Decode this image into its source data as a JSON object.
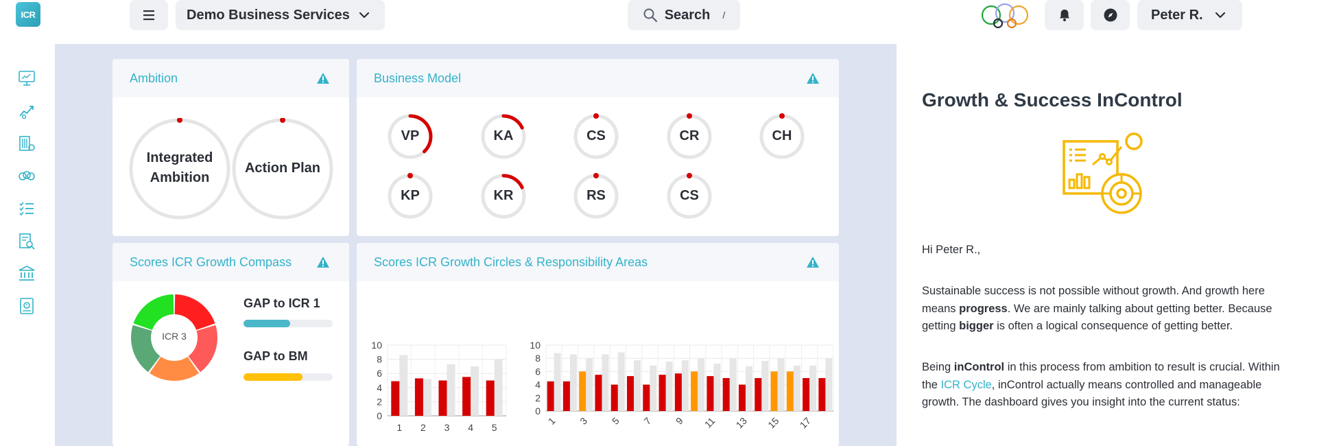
{
  "header": {
    "logo_text": "ICR",
    "business_name": "Demo Business Services",
    "search_label": "Search",
    "search_shortcut": "/",
    "user_name": "Peter R."
  },
  "sidebar": {
    "icons": [
      "dashboard-icon",
      "growth-icon",
      "building-icon",
      "circles-icon",
      "checklist-icon",
      "report-search-icon",
      "bank-icon",
      "book-icon"
    ]
  },
  "ambition": {
    "title": "Ambition",
    "rings": [
      {
        "line1": "Integrated",
        "line2": "Ambition",
        "progress": 0
      },
      {
        "label": "Action Plan",
        "progress": 0
      }
    ]
  },
  "business_model": {
    "title": "Business Model",
    "items": [
      {
        "label": "VP",
        "progress": 0.38
      },
      {
        "label": "KA",
        "progress": 0.18
      },
      {
        "label": "CS",
        "progress": 0
      },
      {
        "label": "CR",
        "progress": 0
      },
      {
        "label": "CH",
        "progress": 0
      },
      {
        "label": "KP",
        "progress": 0
      },
      {
        "label": "KR",
        "progress": 0.18
      },
      {
        "label": "RS",
        "progress": 0
      },
      {
        "label": "CS",
        "progress": 0
      }
    ]
  },
  "compass": {
    "title": "Scores ICR Growth Compass",
    "center_label": "ICR 3",
    "segments": [
      {
        "value": 1,
        "color": "#ff1f1f"
      },
      {
        "value": 1,
        "color": "#ff5a5a"
      },
      {
        "value": 1,
        "color": "#ff8c42"
      },
      {
        "value": 1,
        "color": "#5aa876"
      },
      {
        "value": 1,
        "color": "#22e022"
      }
    ],
    "gaps": [
      {
        "label": "GAP to ICR 1",
        "value": 0.52,
        "color": "#4ab8c8"
      },
      {
        "label": "GAP to BM",
        "value": 0.66,
        "color": "#ffc107"
      }
    ]
  },
  "growth": {
    "title": "Scores ICR Growth Circles & Responsibility Areas"
  },
  "chart_data": [
    {
      "type": "bar",
      "categories": [
        "1",
        "2",
        "3",
        "4",
        "5"
      ],
      "ylim": [
        0,
        10
      ],
      "yticks": [
        0,
        2,
        4,
        6,
        8,
        10
      ],
      "xticks": [
        "1",
        "2",
        "3",
        "4",
        "5"
      ],
      "grid": true,
      "series": [
        {
          "values": [
            8.6,
            5.2,
            7.3,
            7.0,
            8.0
          ],
          "color": "#e6e6e6"
        },
        {
          "values": [
            4.9,
            5.3,
            5.0,
            5.5,
            5.0
          ],
          "color": "#d50000"
        }
      ]
    },
    {
      "type": "bar",
      "categories": [
        "1",
        "2",
        "3",
        "4",
        "5",
        "6",
        "7",
        "8",
        "9",
        "10",
        "11",
        "12",
        "13",
        "14",
        "15",
        "16",
        "17",
        "18"
      ],
      "ylim": [
        0,
        10
      ],
      "yticks": [
        0,
        2,
        4,
        6,
        8,
        10
      ],
      "xticks": [
        "1",
        "3",
        "5",
        "7",
        "9",
        "11",
        "13",
        "15",
        "17"
      ],
      "grid": true,
      "series": [
        {
          "values": [
            8.8,
            8.6,
            8.0,
            8.6,
            8.9,
            7.7,
            6.9,
            7.5,
            7.7,
            8.0,
            7.2,
            8.0,
            6.8,
            7.6,
            8.0,
            6.9,
            6.9,
            8.0
          ],
          "color": "#e6e6e6"
        },
        {
          "values": [
            4.5,
            4.5,
            6.0,
            5.5,
            4.0,
            5.3,
            4.0,
            5.5,
            5.7,
            6.0,
            5.3,
            5.0,
            4.0,
            5.0,
            6.0,
            6.0,
            5.0,
            5.0
          ],
          "colors": [
            "#d50000",
            "#d50000",
            "#ff9800",
            "#d50000",
            "#d50000",
            "#d50000",
            "#d50000",
            "#d50000",
            "#d50000",
            "#ff9800",
            "#d50000",
            "#d50000",
            "#d50000",
            "#d50000",
            "#ff9800",
            "#ff9800",
            "#d50000",
            "#d50000"
          ]
        }
      ]
    }
  ],
  "panel": {
    "title": "Growth & Success InControl",
    "greeting": "Hi Peter R.,",
    "p1_a": "Sustainable success is not possible without growth. And growth here means ",
    "p1_b": "progress",
    "p1_c": ". We are mainly talking about getting better. Because getting ",
    "p1_d": "bigger",
    "p1_e": " is often a logical consequence of getting better.",
    "p2_a": "Being ",
    "p2_b": "inControl",
    "p2_c": " in this process from ambition to result is crucial. Within the ",
    "p2_link": "ICR Cycle",
    "p2_d": ", inControl actually means controlled and manageable growth. The dashboard gives you insight into the current status:"
  }
}
